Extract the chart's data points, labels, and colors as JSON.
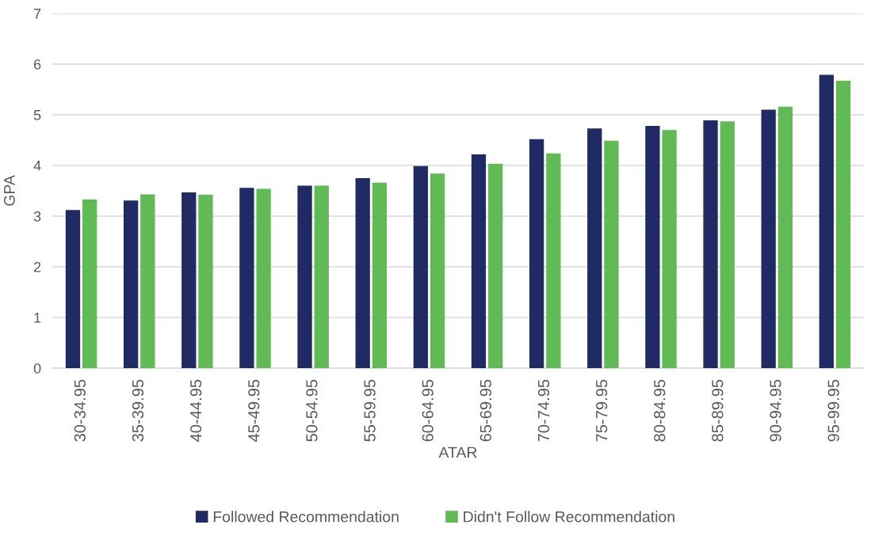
{
  "chart_data": {
    "type": "bar",
    "xlabel": "ATAR",
    "ylabel": "GPA",
    "categories": [
      "30-34.95",
      "35-39.95",
      "40-44.95",
      "45-49.95",
      "50-54.95",
      "55-59.95",
      "60-64.95",
      "65-69.95",
      "70-74.95",
      "75-79.95",
      "80-84.95",
      "85-89.95",
      "90-94.95",
      "95-99.95"
    ],
    "series": [
      {
        "name": "Followed Recommendation",
        "color": "#202a64",
        "values": [
          3.12,
          3.31,
          3.47,
          3.56,
          3.6,
          3.75,
          3.99,
          4.22,
          4.52,
          4.73,
          4.78,
          4.89,
          5.1,
          5.79
        ]
      },
      {
        "name": "Didn't Follow Recommendation",
        "color": "#60bb55",
        "values": [
          3.33,
          3.43,
          3.42,
          3.54,
          3.6,
          3.66,
          3.84,
          4.03,
          4.24,
          4.49,
          4.7,
          4.87,
          5.16,
          5.67
        ]
      }
    ],
    "ylim": [
      0,
      7
    ],
    "yticks": [
      0,
      1,
      2,
      3,
      4,
      5,
      6,
      7
    ],
    "grid": "y",
    "legend": "bottom"
  }
}
